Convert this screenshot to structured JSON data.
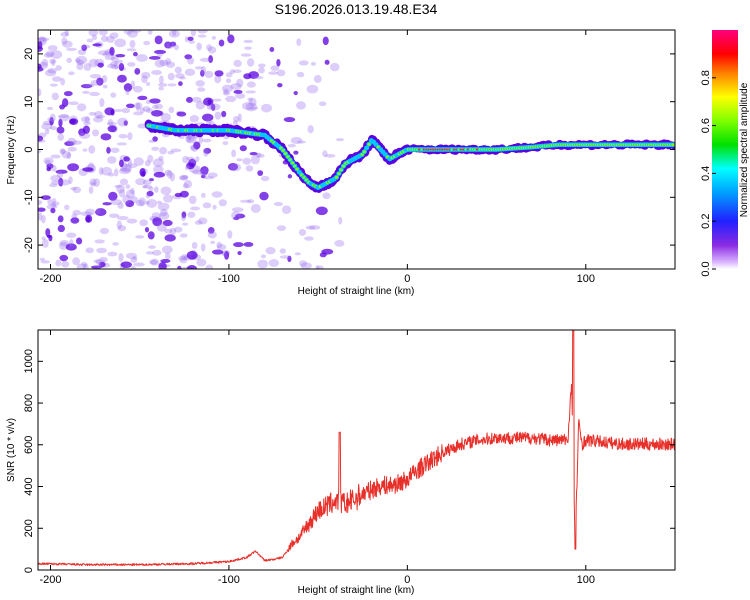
{
  "figure_title": "S196.2026.013.19.48.E34",
  "colors": {
    "snr_line": "#e8302a",
    "ridge_outer": "#5a00e0",
    "ridge_inner": "#00c8ff",
    "ridge_core": "#7fff00",
    "ridge_hot": "#ff2020",
    "speckle": "#9a70f0"
  },
  "chart_data": [
    {
      "type": "heatmap",
      "title": "S196.2026.013.19.48.E34",
      "xlabel": "Height of straight line (km)",
      "ylabel": "Frequency (Hz)",
      "xlim": [
        -207,
        150
      ],
      "ylim": [
        -25,
        25
      ],
      "xticks": [
        -200,
        -100,
        0,
        100
      ],
      "xtick_labels": [
        "-200",
        "-100",
        "0",
        "100"
      ],
      "yticks": [
        -20,
        -10,
        0,
        10,
        20
      ],
      "ytick_labels": [
        "-20",
        "-10",
        "0",
        "10",
        "20"
      ],
      "colorbar": {
        "label": "Normalized spectral amplitude",
        "range": [
          0,
          1
        ],
        "ticks": [
          0.0,
          0.2,
          0.4,
          0.6,
          0.8
        ],
        "tick_labels": [
          "0.0",
          "0.2",
          "0.4",
          "0.6",
          "0.8"
        ],
        "colormap": "rainbow (white-purple-blue-cyan-green-yellow-red-magenta)"
      },
      "ridge": {
        "x": [
          -145,
          -130,
          -120,
          -110,
          -100,
          -90,
          -80,
          -70,
          -60,
          -55,
          -50,
          -45,
          -40,
          -35,
          -30,
          -25,
          -20,
          -15,
          -10,
          -5,
          0,
          10,
          30,
          50,
          70,
          85,
          90,
          95,
          100,
          110,
          120,
          130,
          150
        ],
        "y": [
          5,
          4,
          4,
          4,
          4,
          3.5,
          3,
          0,
          -5,
          -7,
          -8,
          -7,
          -6,
          -3,
          -2,
          -1,
          2,
          0,
          -2,
          -1,
          0,
          0,
          0,
          0,
          0.5,
          1,
          1,
          1,
          1,
          1,
          1,
          1,
          1
        ]
      }
    },
    {
      "type": "line",
      "xlabel": "Height of straight line (km)",
      "ylabel": "SNR (10 * v/v)",
      "xlim": [
        -207,
        150
      ],
      "ylim": [
        0,
        1150
      ],
      "xticks": [
        -200,
        -100,
        0,
        100
      ],
      "xtick_labels": [
        "-200",
        "-100",
        "0",
        "100"
      ],
      "yticks": [
        0,
        200,
        400,
        600,
        800,
        1000
      ],
      "ytick_labels": [
        "0",
        "200",
        "400",
        "600",
        "800",
        "1000"
      ],
      "series": [
        {
          "name": "SNR",
          "x": [
            -207,
            -180,
            -150,
            -120,
            -100,
            -90,
            -85,
            -80,
            -75,
            -70,
            -65,
            -60,
            -55,
            -50,
            -45,
            -40,
            -35,
            -30,
            -25,
            -20,
            -15,
            -10,
            -5,
            0,
            5,
            10,
            15,
            20,
            30,
            40,
            50,
            60,
            70,
            80,
            85,
            90,
            92,
            94,
            96,
            98,
            100,
            110,
            120,
            130,
            140,
            150
          ],
          "values": [
            30,
            25,
            25,
            30,
            40,
            60,
            90,
            45,
            50,
            60,
            120,
            160,
            220,
            280,
            300,
            330,
            310,
            330,
            360,
            380,
            400,
            400,
            410,
            430,
            470,
            500,
            530,
            560,
            600,
            620,
            630,
            630,
            630,
            620,
            620,
            620,
            900,
            100,
            700,
            600,
            620,
            610,
            600,
            600,
            600,
            600
          ]
        }
      ],
      "annotations": [
        {
          "x": -38,
          "value": 660
        },
        {
          "x": 93,
          "value": 1150
        },
        {
          "x": 94,
          "value": 100
        }
      ]
    }
  ]
}
